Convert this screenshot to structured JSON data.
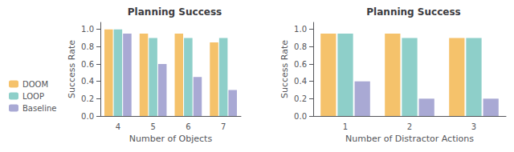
{
  "chart_data": [
    {
      "type": "bar",
      "title": "Planning Success",
      "xlabel": "Number of Objects",
      "ylabel": "Success Rate",
      "categories": [
        "4",
        "5",
        "6",
        "7"
      ],
      "series": [
        {
          "name": "DOOM",
          "color": "#f5c26b",
          "values": [
            1.0,
            0.95,
            0.95,
            0.85
          ]
        },
        {
          "name": "LOOP",
          "color": "#8ecfc9",
          "values": [
            1.0,
            0.9,
            0.9,
            0.9
          ]
        },
        {
          "name": "Baseline",
          "color": "#a9a9d4",
          "values": [
            0.95,
            0.6,
            0.45,
            0.3
          ]
        }
      ],
      "ylim": [
        0.0,
        1.08
      ],
      "yticks": [
        {
          "value": 0.0,
          "label": "0.0"
        },
        0.2,
        0.4,
        0.6,
        0.8,
        {
          "value": 1.0,
          "label": "1.0"
        }
      ],
      "grid": false,
      "legend": "lower left"
    },
    {
      "type": "bar",
      "title": "Planning Success",
      "xlabel": "Number of Distractor Actions",
      "ylabel": "Success Rate",
      "categories": [
        "1",
        "2",
        "3"
      ],
      "series": [
        {
          "name": "DOOM",
          "color": "#f5c26b",
          "values": [
            0.95,
            0.95,
            0.9
          ]
        },
        {
          "name": "LOOP",
          "color": "#8ecfc9",
          "values": [
            0.95,
            0.9,
            0.9
          ]
        },
        {
          "name": "Baseline",
          "color": "#a9a9d4",
          "values": [
            0.4,
            0.2,
            0.2
          ]
        }
      ],
      "ylim": [
        0.0,
        1.08
      ],
      "yticks": [
        {
          "value": 0.0,
          "label": "0.0"
        },
        0.2,
        0.4,
        0.6,
        0.8,
        {
          "value": 1.0,
          "label": "1.0"
        }
      ],
      "grid": false
    }
  ]
}
